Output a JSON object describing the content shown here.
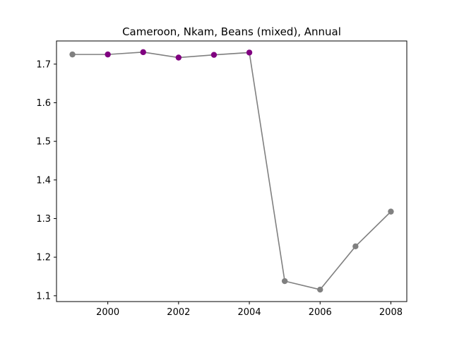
{
  "chart_data": {
    "type": "line",
    "title": "Cameroon, Nkam, Beans (mixed), Annual",
    "xlabel": "",
    "ylabel": "",
    "x": [
      1999,
      2000,
      2001,
      2002,
      2003,
      2004,
      2005,
      2006,
      2007,
      2008
    ],
    "values": [
      1.725,
      1.725,
      1.731,
      1.717,
      1.724,
      1.73,
      1.138,
      1.116,
      1.228,
      1.318
    ],
    "point_colors": [
      "#808080",
      "#800080",
      "#800080",
      "#800080",
      "#800080",
      "#800080",
      "#808080",
      "#808080",
      "#808080",
      "#808080"
    ],
    "line_color": "#808080",
    "xlim": [
      1998.55,
      2008.45
    ],
    "ylim": [
      1.085,
      1.76
    ],
    "xticks": [
      2000,
      2002,
      2004,
      2006,
      2008
    ],
    "xtick_labels": [
      "2000",
      "2002",
      "2004",
      "2006",
      "2008"
    ],
    "yticks": [
      1.1,
      1.2,
      1.3,
      1.4,
      1.5,
      1.6,
      1.7
    ],
    "ytick_labels": [
      "1.1",
      "1.2",
      "1.3",
      "1.4",
      "1.5",
      "1.6",
      "1.7"
    ],
    "grid": false
  }
}
